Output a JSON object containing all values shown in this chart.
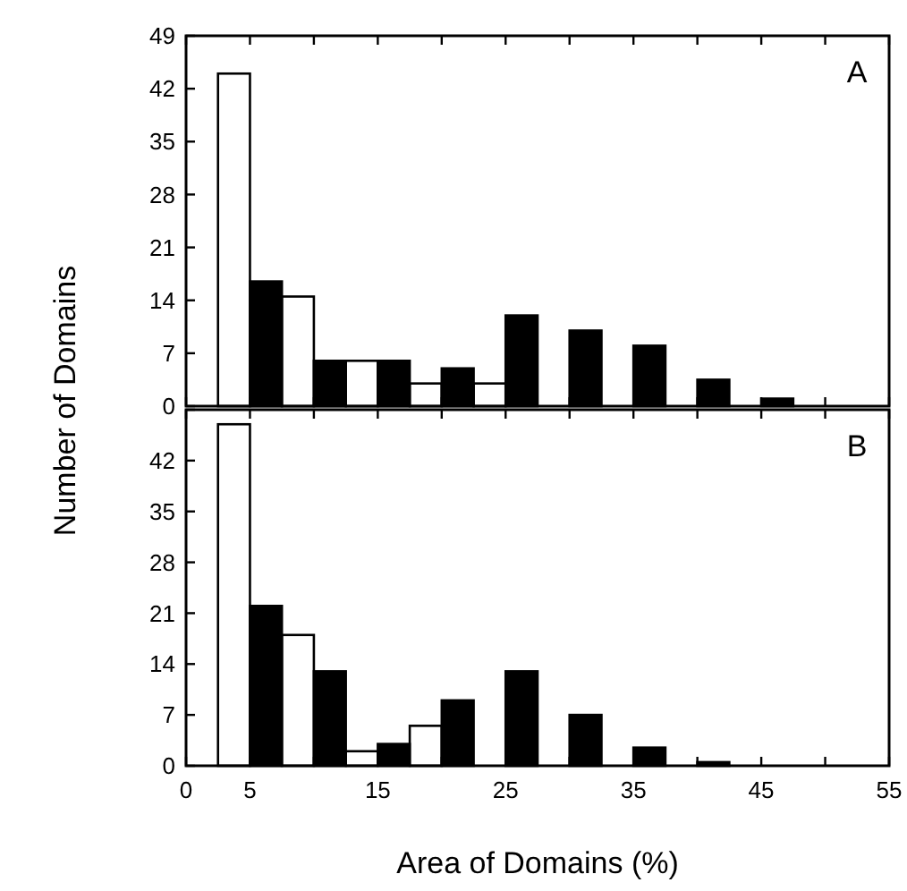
{
  "chart_data": [
    {
      "type": "bar",
      "x": [
        5,
        10,
        15,
        20,
        25,
        30,
        35,
        40,
        45
      ],
      "annotations": [
        "A"
      ],
      "ylabel": "Number of Domains",
      "xlim": [
        0,
        55
      ],
      "xticks": [
        {
          "value": 0,
          "label": null
        },
        {
          "value": 5,
          "label": null
        },
        {
          "value": 10,
          "label": null
        },
        {
          "value": 15,
          "label": null
        },
        {
          "value": 20,
          "label": null
        },
        {
          "value": 25,
          "label": null
        },
        {
          "value": 30,
          "label": null
        },
        {
          "value": 35,
          "label": null
        },
        {
          "value": 40,
          "label": null
        },
        {
          "value": 45,
          "label": null
        },
        {
          "value": 50,
          "label": null
        },
        {
          "value": 55,
          "label": null
        }
      ],
      "ylim": [
        0,
        49
      ],
      "yticks": [
        0,
        7,
        14,
        21,
        28,
        35,
        42,
        49
      ],
      "tick_labels": "y",
      "series": [
        {
          "color": "#ffffff",
          "values": [
            44,
            14.5,
            6,
            3,
            3,
            0,
            0,
            0,
            0
          ]
        },
        {
          "color": "#000000",
          "values": [
            16.5,
            6,
            6,
            5,
            12,
            10,
            8,
            3.5,
            1
          ]
        }
      ]
    },
    {
      "type": "bar",
      "x": [
        5,
        10,
        15,
        20,
        25,
        30,
        35,
        40,
        45
      ],
      "annotations": [
        "B"
      ],
      "xlabel": "Area of Domains (%)",
      "xlim": [
        0,
        55
      ],
      "xticks": [
        0,
        5,
        {
          "value": 10,
          "label": null
        },
        15,
        {
          "value": 20,
          "label": null
        },
        25,
        {
          "value": 30,
          "label": null
        },
        35,
        {
          "value": 40,
          "label": null
        },
        45,
        {
          "value": 50,
          "label": null
        },
        55
      ],
      "ylim": [
        0,
        49
      ],
      "yticks": [
        0,
        7,
        14,
        21,
        28,
        35,
        42,
        {
          "value": 49,
          "label": null
        }
      ],
      "series": [
        {
          "color": "#ffffff",
          "values": [
            47,
            18,
            2,
            5.5,
            0,
            0,
            0,
            0,
            0
          ]
        },
        {
          "color": "#000000",
          "values": [
            22,
            13,
            3,
            9,
            13,
            7,
            2.5,
            0.5,
            0
          ]
        }
      ]
    }
  ]
}
